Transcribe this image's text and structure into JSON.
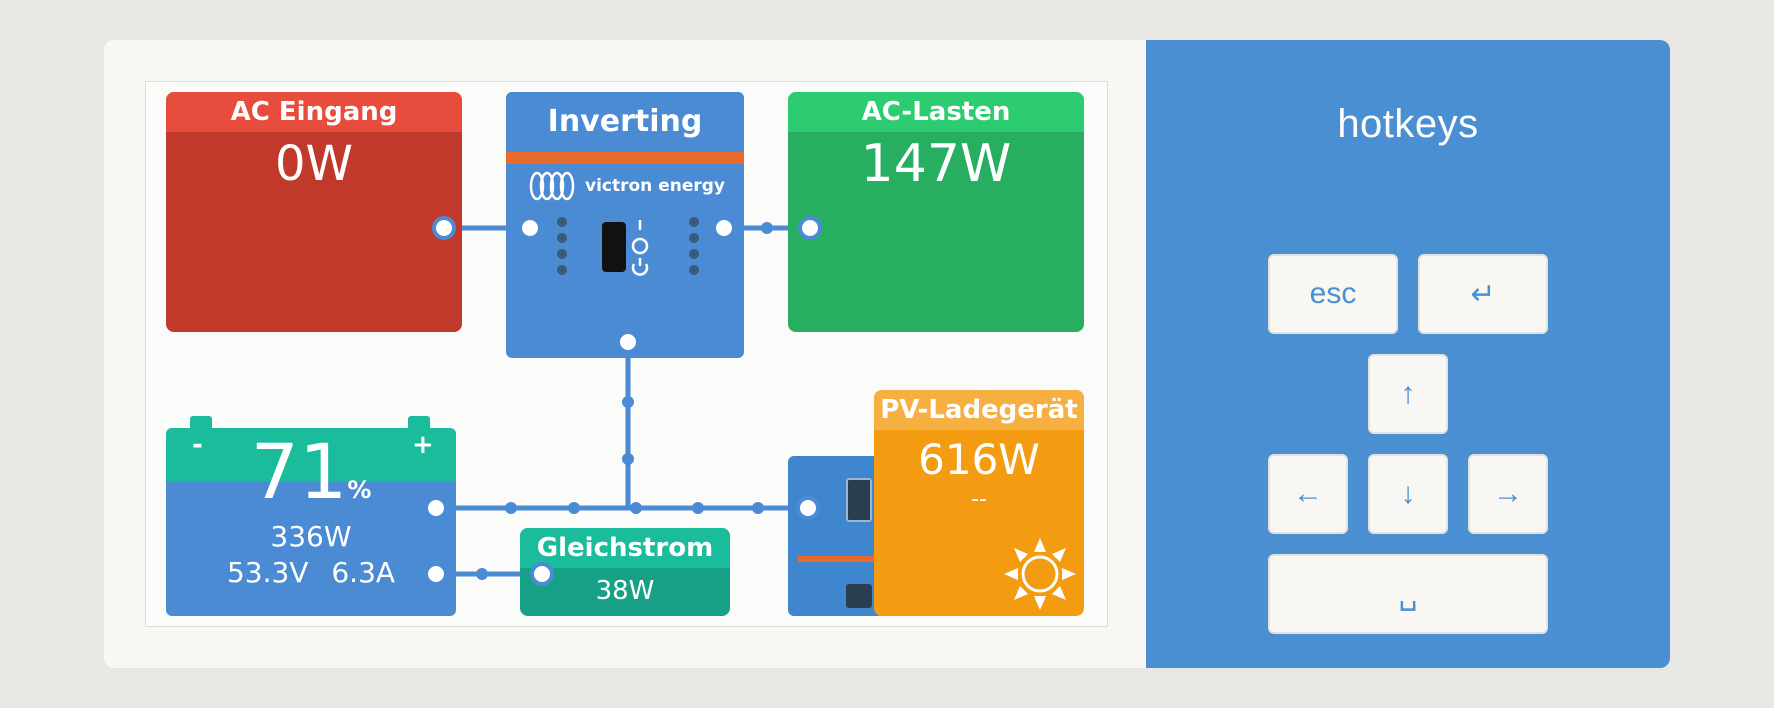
{
  "hotkeys": {
    "title": "hotkeys",
    "esc_label": "esc",
    "enter_icon": "↵",
    "up_icon": "↑",
    "left_icon": "←",
    "down_icon": "↓",
    "right_icon": "→",
    "space_icon": "␣"
  },
  "ac_input": {
    "title": "AC Eingang",
    "power": "0W"
  },
  "inverter": {
    "title": "Inverting",
    "brand": "victron energy"
  },
  "ac_loads": {
    "title": "AC-Lasten",
    "power": "147W"
  },
  "battery": {
    "soc_value": "71",
    "soc_unit": "%",
    "power": "336W",
    "voltage": "53.3V",
    "current": "6.3A",
    "minus": "-",
    "plus": "+"
  },
  "dc_power": {
    "title": "Gleichstrom",
    "power": "38W"
  },
  "pv_charger": {
    "title": "PV-Ladegerät",
    "power": "616W",
    "state": "--"
  },
  "colors": {
    "ac_input": "#c0392b",
    "ac_input_header": "#e74c3c",
    "inverter": "#4a8bd4",
    "ac_loads": "#27ae60",
    "ac_loads_header": "#2ecc71",
    "battery_header": "#1abc9c",
    "battery": "#4a8bd4",
    "dc": "#16a085",
    "pv": "#f39c12",
    "pv_header": "#f5b041"
  }
}
